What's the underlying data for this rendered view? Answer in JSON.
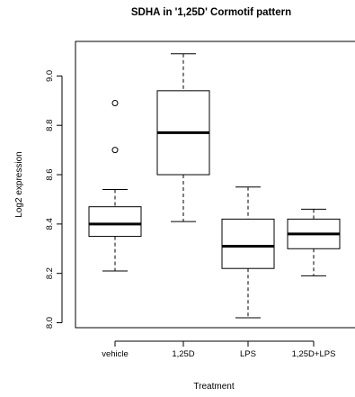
{
  "chart_data": {
    "type": "box",
    "title": "SDHA in '1,25D' Cormotif pattern",
    "xlabel": "Treatment",
    "ylabel": "Log2 expression",
    "ylim": [
      7.98,
      9.14
    ],
    "yticks": [
      {
        "value": 8.0,
        "label": "8.0"
      },
      {
        "value": 8.2,
        "label": "8.2"
      },
      {
        "value": 8.4,
        "label": "8.4"
      },
      {
        "value": 8.6,
        "label": "8.6"
      },
      {
        "value": 8.8,
        "label": "8.8"
      },
      {
        "value": 9.0,
        "label": "9.0"
      }
    ],
    "categories": [
      "vehicle",
      "1,25D",
      "LPS",
      "1,25D+LPS"
    ],
    "boxes": [
      {
        "category": "vehicle",
        "whisker_low": 8.21,
        "q1": 8.35,
        "median": 8.4,
        "q3": 8.47,
        "whisker_high": 8.54,
        "outliers": [
          8.7,
          8.89
        ]
      },
      {
        "category": "1,25D",
        "whisker_low": 8.41,
        "q1": 8.6,
        "median": 8.77,
        "q3": 8.94,
        "whisker_high": 9.09,
        "outliers": []
      },
      {
        "category": "LPS",
        "whisker_low": 8.02,
        "q1": 8.22,
        "median": 8.31,
        "q3": 8.42,
        "whisker_high": 8.55,
        "outliers": []
      },
      {
        "category": "1,25D+LPS",
        "whisker_low": 8.19,
        "q1": 8.3,
        "median": 8.36,
        "q3": 8.42,
        "whisker_high": 8.46,
        "outliers": []
      }
    ],
    "grid": false,
    "legend": "none"
  }
}
